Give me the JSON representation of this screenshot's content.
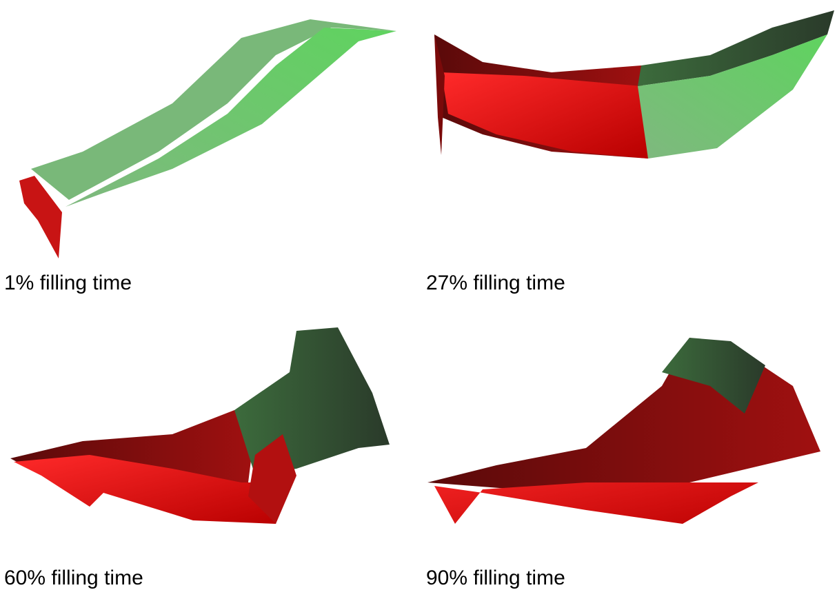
{
  "panels": [
    {
      "caption": "1% filling time"
    },
    {
      "caption": "27% filling time"
    },
    {
      "caption": "60% filling time"
    },
    {
      "caption": "90% filling time"
    }
  ]
}
